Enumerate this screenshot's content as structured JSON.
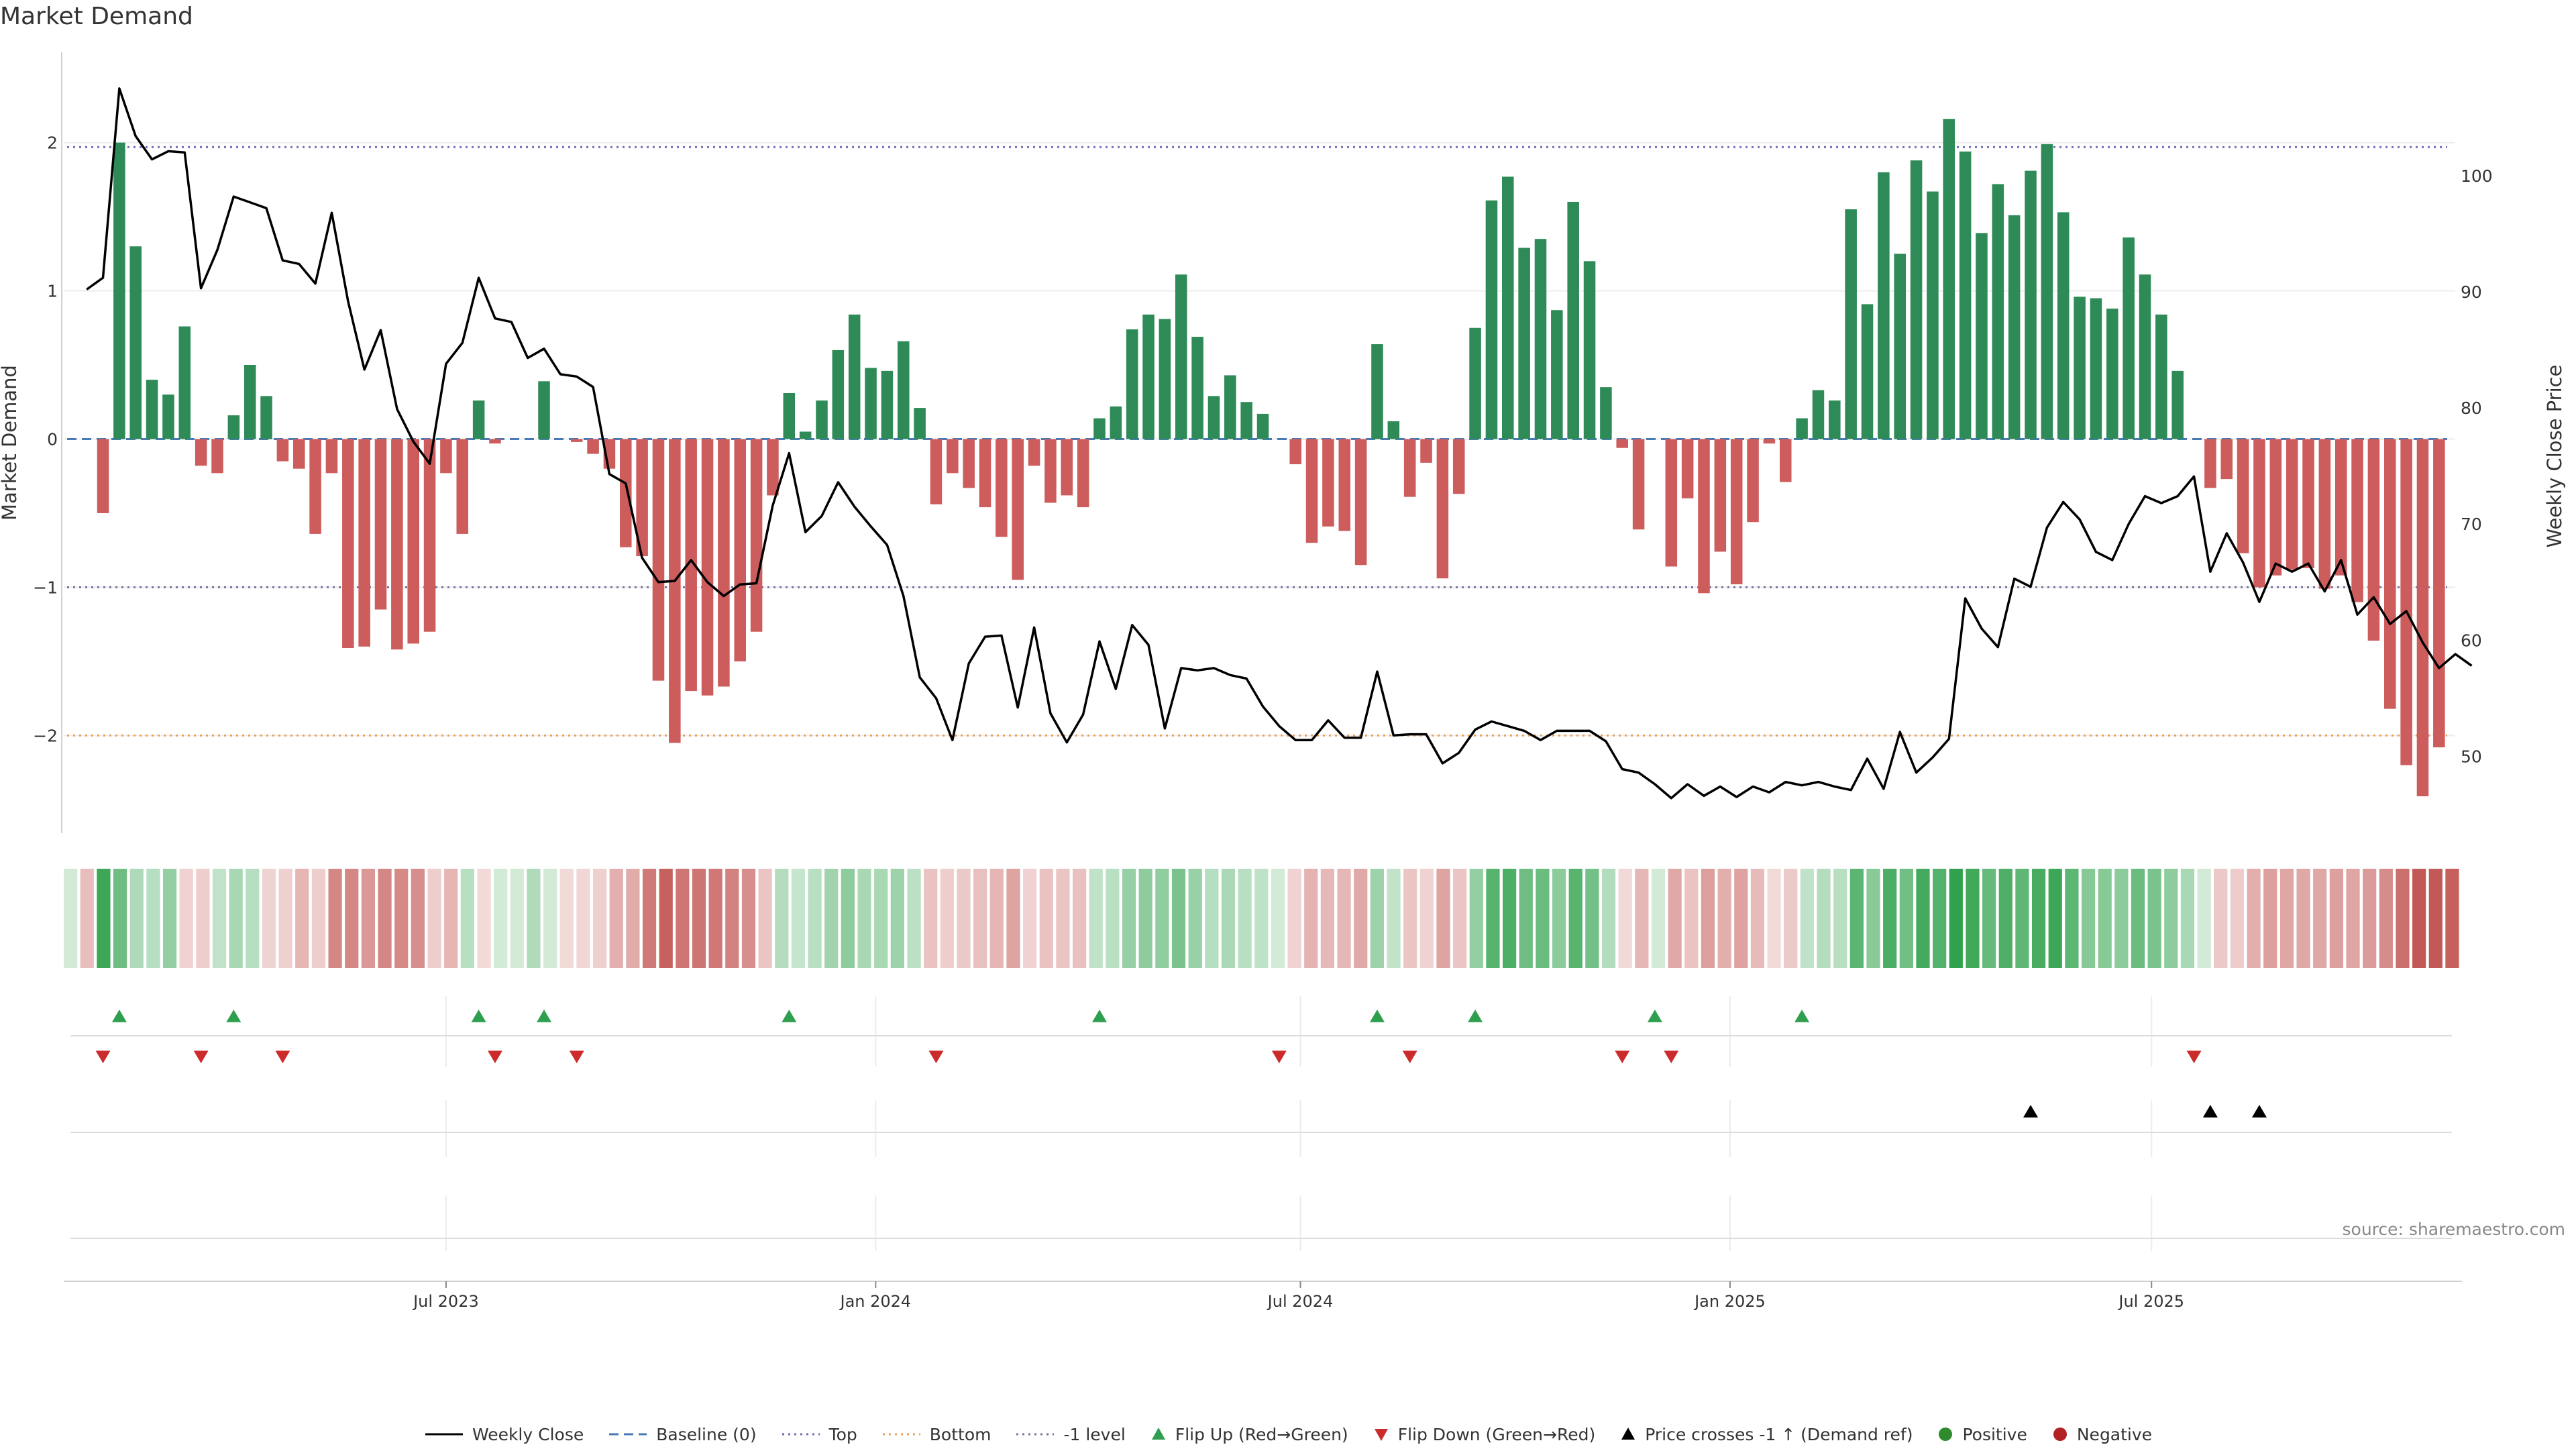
{
  "title": "Market Demand",
  "source_note": "source: sharemaestro.com",
  "legend": [
    {
      "key": "close",
      "label": "Weekly Close",
      "style": "line",
      "color": "#000000"
    },
    {
      "key": "baseline",
      "label": "Baseline (0)",
      "style": "dash",
      "color": "#4a7ab5"
    },
    {
      "key": "top",
      "label": "Top",
      "style": "dot",
      "color": "#6b6bb5"
    },
    {
      "key": "bottom",
      "label": "Bottom",
      "style": "dot",
      "color": "#e8a05a"
    },
    {
      "key": "neg1",
      "label": "-1 level",
      "style": "dot",
      "color": "#7a6fa0"
    },
    {
      "key": "flipup",
      "label": "Flip Up (Red→Green)",
      "style": "tri-up",
      "color": "#2e9e4f"
    },
    {
      "key": "flipdown",
      "label": "Flip Down (Green→Red)",
      "style": "tri-down",
      "color": "#cc2b2b"
    },
    {
      "key": "cross",
      "label": "Price crosses -1 ↑ (Demand ref)",
      "style": "tri-up",
      "color": "#000000"
    },
    {
      "key": "pos",
      "label": "Positive",
      "style": "dot-marker",
      "color": "#2e8b2e"
    },
    {
      "key": "neg",
      "label": "Negative",
      "style": "dot-marker",
      "color": "#b22222"
    }
  ],
  "chart_data": {
    "type": "bar",
    "title": "Market Demand",
    "ylabel": "Market Demand",
    "y2label": "Weekly Close Price",
    "ylim": [
      -2.65,
      2.6
    ],
    "y2lim": [
      43.5,
      110.5
    ],
    "yticks": [
      -2,
      -1,
      0,
      1,
      2
    ],
    "yticklabels": [
      "−2",
      "−1",
      "0",
      "1",
      "2"
    ],
    "y2ticks": [
      50,
      60,
      70,
      80,
      90,
      100
    ],
    "xticks": [
      {
        "label": "Jul 2023",
        "week": 22
      },
      {
        "label": "Jan 2024",
        "week": 48.3
      },
      {
        "label": "Jul 2024",
        "week": 74.3
      },
      {
        "label": "Jan 2025",
        "week": 100.6
      },
      {
        "label": "Jul 2025",
        "week": 126.4
      }
    ],
    "colors": {
      "positive": "#2e8b57",
      "negative": "#cd5c5c",
      "close": "#000000",
      "baseline": "#4a7ab5",
      "top": "#6b6bb5",
      "bottom": "#e8a05a",
      "neg1": "#7a6fa0",
      "flip_up": "#2e9e4f",
      "flip_down": "#cc2b2b",
      "cross": "#000000"
    },
    "reference_lines": {
      "top": 1.97,
      "baseline": 0,
      "neg1": -1,
      "bottom": -2
    },
    "series": [
      {
        "name": "Market Demand",
        "values": [
          0,
          -0.5,
          2.0,
          1.3,
          0.4,
          0.3,
          0.76,
          -0.18,
          -0.23,
          0.16,
          0.5,
          0.29,
          -0.15,
          -0.2,
          -0.64,
          -0.23,
          -1.41,
          -1.4,
          -1.15,
          -1.42,
          -1.38,
          -1.3,
          -0.23,
          -0.64,
          0.26,
          -0.03,
          0,
          0,
          0.39,
          0,
          -0.02,
          -0.1,
          -0.2,
          -0.73,
          -0.79,
          -1.63,
          -2.05,
          -1.7,
          -1.73,
          -1.67,
          -1.5,
          -1.3,
          -0.38,
          0.31,
          0.05,
          0.26,
          0.6,
          0.84,
          0.48,
          0.46,
          0.66,
          0.21,
          -0.44,
          -0.23,
          -0.33,
          -0.46,
          -0.66,
          -0.95,
          -0.18,
          -0.43,
          -0.38,
          -0.46,
          0.14,
          0.22,
          0.74,
          0.84,
          0.81,
          1.11,
          0.69,
          0.29,
          0.43,
          0.25,
          0.17,
          0,
          -0.17,
          -0.7,
          -0.59,
          -0.62,
          -0.85,
          0.64,
          0.12,
          -0.39,
          -0.16,
          -0.94,
          -0.37,
          0.75,
          1.61,
          1.77,
          1.29,
          1.35,
          0.87,
          1.6,
          1.2,
          0.35,
          -0.06,
          -0.61,
          0,
          -0.86,
          -0.4,
          -1.04,
          -0.76,
          -0.98,
          -0.56,
          -0.03,
          -0.29,
          0.14,
          0.33,
          0.26,
          1.55,
          0.91,
          1.8,
          1.25,
          1.88,
          1.67,
          2.16,
          1.94,
          1.39,
          1.72,
          1.51,
          1.81,
          1.99,
          1.53,
          0.96,
          0.95,
          0.88,
          1.36,
          1.11,
          0.84,
          0.46,
          0,
          -0.33,
          -0.27,
          -0.77,
          -1.0,
          -0.92,
          -0.88,
          -0.87,
          -1.01,
          -0.92,
          -1.1,
          -1.36,
          -1.82,
          -2.2,
          -2.41,
          -2.08
        ]
      },
      {
        "name": "Weekly Close",
        "values": [
          90.2,
          91.2,
          107.5,
          103.4,
          101.4,
          102.1,
          102.0,
          90.3,
          93.6,
          98.2,
          97.7,
          97.2,
          92.7,
          92.4,
          90.7,
          96.8,
          89.2,
          83.3,
          86.7,
          79.9,
          77.1,
          75.2,
          83.8,
          85.6,
          91.2,
          87.7,
          87.4,
          84.3,
          85.1,
          82.9,
          82.7,
          81.8,
          74.3,
          73.5,
          67.1,
          65.0,
          65.1,
          66.9,
          65.0,
          63.8,
          64.8,
          64.9,
          71.6,
          76.1,
          69.3,
          70.7,
          73.6,
          71.5,
          69.8,
          68.2,
          63.8,
          56.8,
          55.0,
          51.4,
          58.0,
          60.3,
          60.4,
          54.2,
          61.1,
          53.7,
          51.2,
          53.6,
          59.9,
          55.8,
          61.3,
          59.6,
          52.4,
          57.6,
          57.4,
          57.6,
          57.0,
          56.7,
          54.3,
          52.6,
          51.4,
          51.4,
          53.1,
          51.6,
          51.6,
          57.3,
          51.8,
          51.9,
          51.9,
          49.4,
          50.3,
          52.3,
          53.0,
          52.6,
          52.2,
          51.4,
          52.2,
          52.2,
          52.2,
          51.3,
          48.9,
          48.6,
          47.6,
          46.4,
          47.6,
          46.6,
          47.4,
          46.5,
          47.4,
          46.9,
          47.8,
          47.5,
          47.8,
          47.4,
          47.1,
          49.8,
          47.2,
          52.1,
          48.6,
          49.9,
          51.5,
          63.6,
          61.0,
          59.4,
          65.3,
          64.6,
          69.7,
          71.9,
          70.4,
          67.6,
          66.9,
          70.0,
          72.4,
          71.8,
          72.4,
          74.1,
          65.9,
          69.2,
          66.7,
          63.3,
          66.6,
          65.9,
          66.6,
          64.2,
          66.9,
          62.2,
          63.7,
          61.4,
          62.5,
          59.8,
          57.6,
          58.8,
          57.8
        ]
      }
    ],
    "flip_up_weeks": [
      2,
      9,
      24,
      28,
      43,
      62,
      79,
      85,
      96,
      105
    ],
    "flip_down_weeks": [
      1,
      7,
      12,
      25,
      30,
      52,
      73,
      81,
      94,
      97,
      129
    ],
    "price_cross_weeks": [
      119,
      130,
      133
    ]
  }
}
